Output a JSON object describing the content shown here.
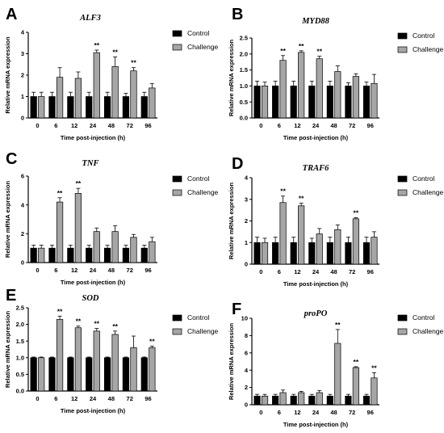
{
  "legend": {
    "control": "Control",
    "challenge": "Challenge"
  },
  "colors": {
    "control": "#000000",
    "challenge": "#a6a6a6",
    "axis": "#000000"
  },
  "chart_data": [
    {
      "panel": "A",
      "type": "bar",
      "title": "ALF3",
      "xlabel": "Time post-injection (h)",
      "ylabel": "Relative mRNA expression",
      "categories": [
        "0",
        "6",
        "12",
        "24",
        "48",
        "72",
        "96"
      ],
      "ylim": [
        0,
        4
      ],
      "yticks": [
        0,
        1,
        2,
        3,
        4
      ],
      "legend_position": "top-right",
      "series": [
        {
          "name": "Control",
          "values": [
            1,
            1,
            1,
            1,
            1,
            1,
            1
          ],
          "errors": [
            0.2,
            0.2,
            0.2,
            0.2,
            0.2,
            0.15,
            0.2
          ]
        },
        {
          "name": "Challenge",
          "values": [
            1,
            1.9,
            1.85,
            3.05,
            2.4,
            2.2,
            1.4
          ],
          "errors": [
            0.2,
            0.45,
            0.3,
            0.12,
            0.45,
            0.15,
            0.2
          ]
        }
      ],
      "significance": [
        "",
        "",
        "",
        "**",
        "**",
        "**",
        ""
      ]
    },
    {
      "panel": "B",
      "type": "bar",
      "title": "MYD88",
      "xlabel": "Time post-injection (h)",
      "ylabel": "Relative mRNA expression",
      "categories": [
        "0",
        "6",
        "12",
        "24",
        "48",
        "72",
        "96"
      ],
      "ylim": [
        0,
        2.5
      ],
      "yticks": [
        0.0,
        0.5,
        1.0,
        1.5,
        2.0,
        2.5
      ],
      "legend_position": "top-right",
      "series": [
        {
          "name": "Control",
          "values": [
            1,
            1,
            1,
            1,
            1,
            1,
            1
          ],
          "errors": [
            0.15,
            0.15,
            0.15,
            0.15,
            0.15,
            0.1,
            0.12
          ]
        },
        {
          "name": "Challenge",
          "values": [
            1,
            1.8,
            2.05,
            1.85,
            1.45,
            1.3,
            1.08
          ],
          "errors": [
            0.12,
            0.15,
            0.05,
            0.08,
            0.18,
            0.08,
            0.28
          ]
        }
      ],
      "significance": [
        "",
        "**",
        "**",
        "**",
        "",
        "",
        ""
      ]
    },
    {
      "panel": "C",
      "type": "bar",
      "title": "TNF",
      "xlabel": "Time post-injection (h)",
      "ylabel": "Relative mRNA expression",
      "categories": [
        "0",
        "6",
        "12",
        "24",
        "48",
        "72",
        "96"
      ],
      "ylim": [
        0,
        6
      ],
      "yticks": [
        0,
        2,
        4,
        6
      ],
      "legend_position": "top-right",
      "series": [
        {
          "name": "Control",
          "values": [
            1,
            1,
            1,
            1,
            1,
            1,
            1
          ],
          "errors": [
            0.2,
            0.2,
            0.2,
            0.2,
            0.2,
            0.2,
            0.2
          ]
        },
        {
          "name": "Challenge",
          "values": [
            1,
            4.2,
            4.8,
            2.15,
            2.15,
            1.75,
            1.45
          ],
          "errors": [
            0.2,
            0.3,
            0.35,
            0.25,
            0.4,
            0.2,
            0.3
          ]
        }
      ],
      "significance": [
        "",
        "**",
        "**",
        "",
        "",
        "",
        ""
      ]
    },
    {
      "panel": "D",
      "type": "bar",
      "title": "TRAF6",
      "xlabel": "Time post-injection (h)",
      "ylabel": "Relative mRNA expression",
      "categories": [
        "0",
        "6",
        "12",
        "24",
        "48",
        "72",
        "96"
      ],
      "ylim": [
        0,
        4
      ],
      "yticks": [
        0,
        1,
        2,
        3,
        4
      ],
      "legend_position": "top-right",
      "series": [
        {
          "name": "Control",
          "values": [
            1,
            1,
            1,
            1,
            1,
            1,
            1
          ],
          "errors": [
            0.25,
            0.25,
            0.25,
            0.2,
            0.25,
            0.25,
            0.25
          ]
        },
        {
          "name": "Challenge",
          "values": [
            1,
            2.85,
            2.7,
            1.4,
            1.6,
            2.1,
            1.25
          ],
          "errors": [
            0.2,
            0.3,
            0.12,
            0.25,
            0.22,
            0.05,
            0.25
          ]
        }
      ],
      "significance": [
        "",
        "**",
        "**",
        "",
        "",
        "**",
        ""
      ]
    },
    {
      "panel": "E",
      "type": "bar",
      "title": "SOD",
      "xlabel": "Time post-injection (h)",
      "ylabel": "Relative mRNA expression",
      "categories": [
        "0",
        "6",
        "12",
        "24",
        "48",
        "72",
        "96"
      ],
      "ylim": [
        0,
        2.5
      ],
      "yticks": [
        0.0,
        0.5,
        1.0,
        1.5,
        2.0,
        2.5
      ],
      "legend_position": "top-right",
      "series": [
        {
          "name": "Control",
          "values": [
            1,
            1,
            1,
            1,
            1,
            1,
            1
          ],
          "errors": [
            0.02,
            0.02,
            0.02,
            0.02,
            0.02,
            0.02,
            0.02
          ]
        },
        {
          "name": "Challenge",
          "values": [
            1,
            2.15,
            1.9,
            1.8,
            1.7,
            1.3,
            1.3
          ],
          "errors": [
            0.02,
            0.1,
            0.05,
            0.08,
            0.1,
            0.35,
            0.05
          ]
        }
      ],
      "significance": [
        "",
        "**",
        "**",
        "**",
        "**",
        "",
        "**"
      ]
    },
    {
      "panel": "F",
      "type": "bar",
      "title": "proPO",
      "xlabel": "Time post-injection (h)",
      "ylabel": "Relative mRNA expression",
      "categories": [
        "0",
        "6",
        "12",
        "24",
        "48",
        "72",
        "96"
      ],
      "ylim": [
        0,
        10
      ],
      "yticks": [
        0,
        2,
        4,
        6,
        8,
        10
      ],
      "legend_position": "top-right",
      "series": [
        {
          "name": "Control",
          "values": [
            1,
            1,
            1,
            1,
            1,
            1,
            1
          ],
          "errors": [
            0.2,
            0.2,
            0.2,
            0.2,
            0.2,
            0.2,
            0.2
          ]
        },
        {
          "name": "Challenge",
          "values": [
            1,
            1.4,
            1.4,
            1.4,
            7.1,
            4.3,
            3.1
          ],
          "errors": [
            0.2,
            0.3,
            0.15,
            0.25,
            1.6,
            0.1,
            0.6
          ]
        }
      ],
      "significance": [
        "",
        "",
        "",
        "",
        "**",
        "**",
        "**"
      ]
    }
  ]
}
